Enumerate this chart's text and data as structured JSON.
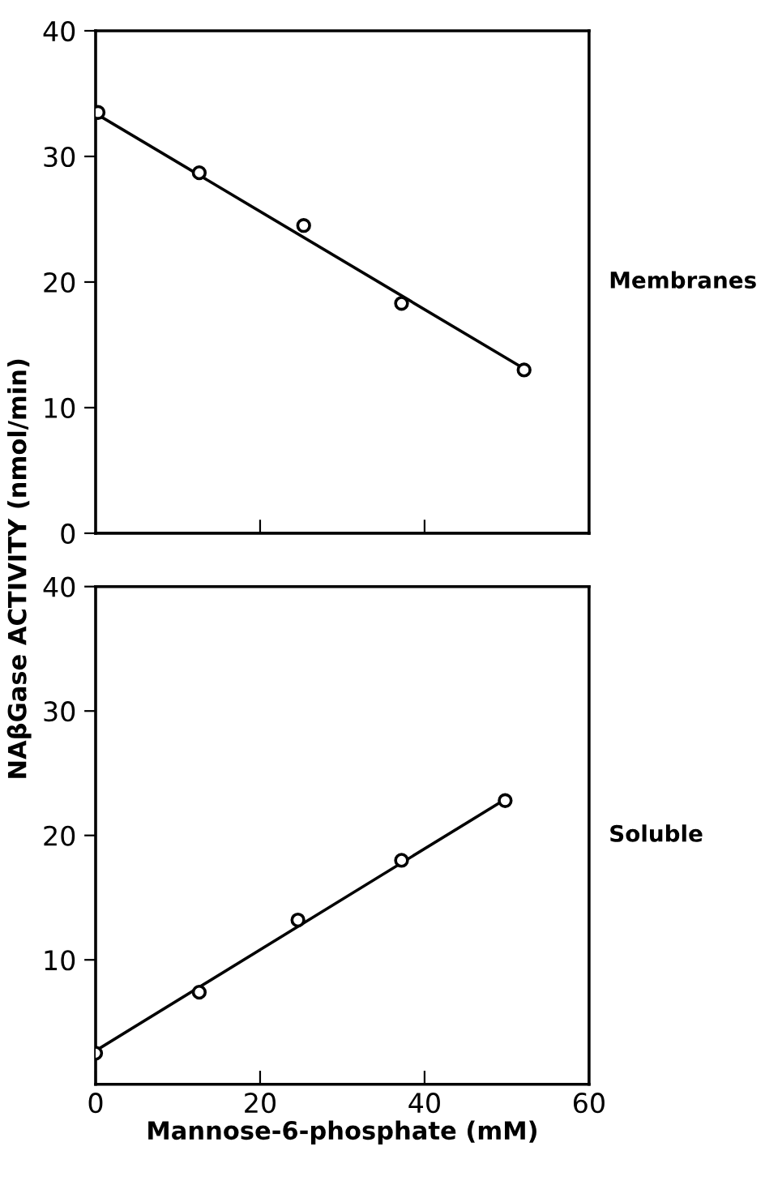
{
  "chart_data": [
    {
      "type": "scatter",
      "ylabel": "NAβGase ACTIVITY (nmol/min)",
      "annotations": [
        "Membranes"
      ],
      "xlim": [
        0,
        60
      ],
      "xticks": [
        {
          "value": 20,
          "label": null
        },
        {
          "value": 40,
          "label": null
        }
      ],
      "ylim": [
        0,
        40
      ],
      "yticks": [
        0,
        10,
        20,
        30,
        40
      ],
      "tick_labels": "y",
      "marker": "circle",
      "grid": false,
      "series": [
        {
          "color": "#000000",
          "x": [
            0.3,
            12.6,
            25.3,
            37.2,
            52.1
          ],
          "values": [
            33.5,
            28.7,
            24.5,
            18.3,
            13.0
          ]
        },
        {
          "type": "line",
          "color": "#000000",
          "x": [
            0.3,
            52.1
          ],
          "values": [
            33.3,
            13.1
          ],
          "marker": "none"
        }
      ]
    },
    {
      "type": "scatter",
      "xlabel": "Mannose-6-phosphate (mM)",
      "annotations": [
        "Soluble"
      ],
      "xlim": [
        0,
        60
      ],
      "xticks": [
        0,
        20,
        40,
        60
      ],
      "ylim": [
        0,
        40
      ],
      "yticks": [
        10,
        20,
        30,
        40
      ],
      "marker": "circle",
      "grid": false,
      "series": [
        {
          "color": "#000000",
          "x": [
            0,
            12.6,
            24.6,
            37.2,
            49.8
          ],
          "values": [
            2.5,
            7.4,
            13.2,
            18.0,
            22.8
          ]
        },
        {
          "type": "line",
          "color": "#000000",
          "x": [
            0,
            49.8
          ],
          "values": [
            2.7,
            22.9
          ],
          "marker": "none"
        }
      ]
    }
  ]
}
